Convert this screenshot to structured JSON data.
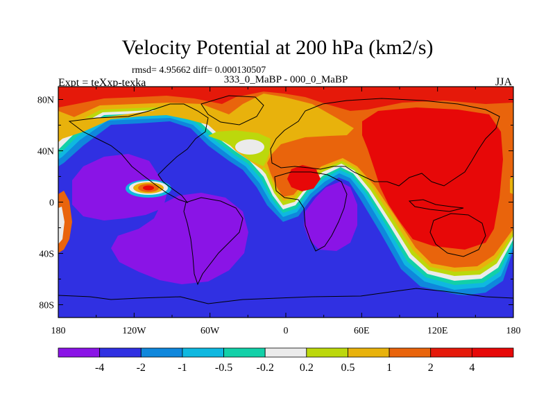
{
  "chart_data": {
    "type": "heatmap",
    "title": "Velocity Potential at 200 hPa (km2/s)",
    "stats_text": "rmsd= 4.95662 diff= 0.000130507",
    "left_label": "Expt = teXxp-texka",
    "center_label": "333_0_MaBP - 000_0_MaBP",
    "right_label": "JJA",
    "x_range": [
      -180,
      180
    ],
    "y_range": [
      -90,
      90
    ],
    "x_ticks": [
      {
        "value": -180,
        "label": "180"
      },
      {
        "value": -120,
        "label": "120W"
      },
      {
        "value": -60,
        "label": "60W"
      },
      {
        "value": 0,
        "label": "0"
      },
      {
        "value": 60,
        "label": "60E"
      },
      {
        "value": 120,
        "label": "120E"
      },
      {
        "value": 180,
        "label": "180"
      }
    ],
    "y_ticks": [
      {
        "value": 80,
        "label": "80N"
      },
      {
        "value": 40,
        "label": "40N"
      },
      {
        "value": 0,
        "label": "0"
      },
      {
        "value": -40,
        "label": "40S"
      },
      {
        "value": -80,
        "label": "80S"
      }
    ],
    "levels": [
      "-4",
      "-2",
      "-1",
      "-0.5",
      "-0.2",
      "0.2",
      "0.5",
      "1",
      "2",
      "4"
    ],
    "level_colors": [
      "#8a14e6",
      "#3030e2",
      "#0f87dc",
      "#0fb8e0",
      "#12d0a8",
      "#ebebeb",
      "#bcd80c",
      "#e8b20c",
      "#e9640c",
      "#e5190a",
      "#e70808"
    ],
    "field_features": [
      {
        "name": "negative center over tropical Pacific",
        "level": "<-4",
        "lon": -115,
        "lat": 5
      },
      {
        "name": "negative center over South America",
        "level": "<-4",
        "lon": -60,
        "lat": -20
      },
      {
        "name": "negative center over Africa",
        "level": "<-4",
        "lon": 30,
        "lat": -15
      },
      {
        "name": "positive maximum over Asia / Indian Ocean",
        "level": ">4",
        "lon": 95,
        "lat": 30
      },
      {
        "name": "positive center over northern Africa",
        "level": ">4",
        "lon": 15,
        "lat": 20
      },
      {
        "name": "small positive anomaly in eastern Pacific",
        "level": "2 to 4",
        "lon": -115,
        "lat": 15
      }
    ]
  }
}
